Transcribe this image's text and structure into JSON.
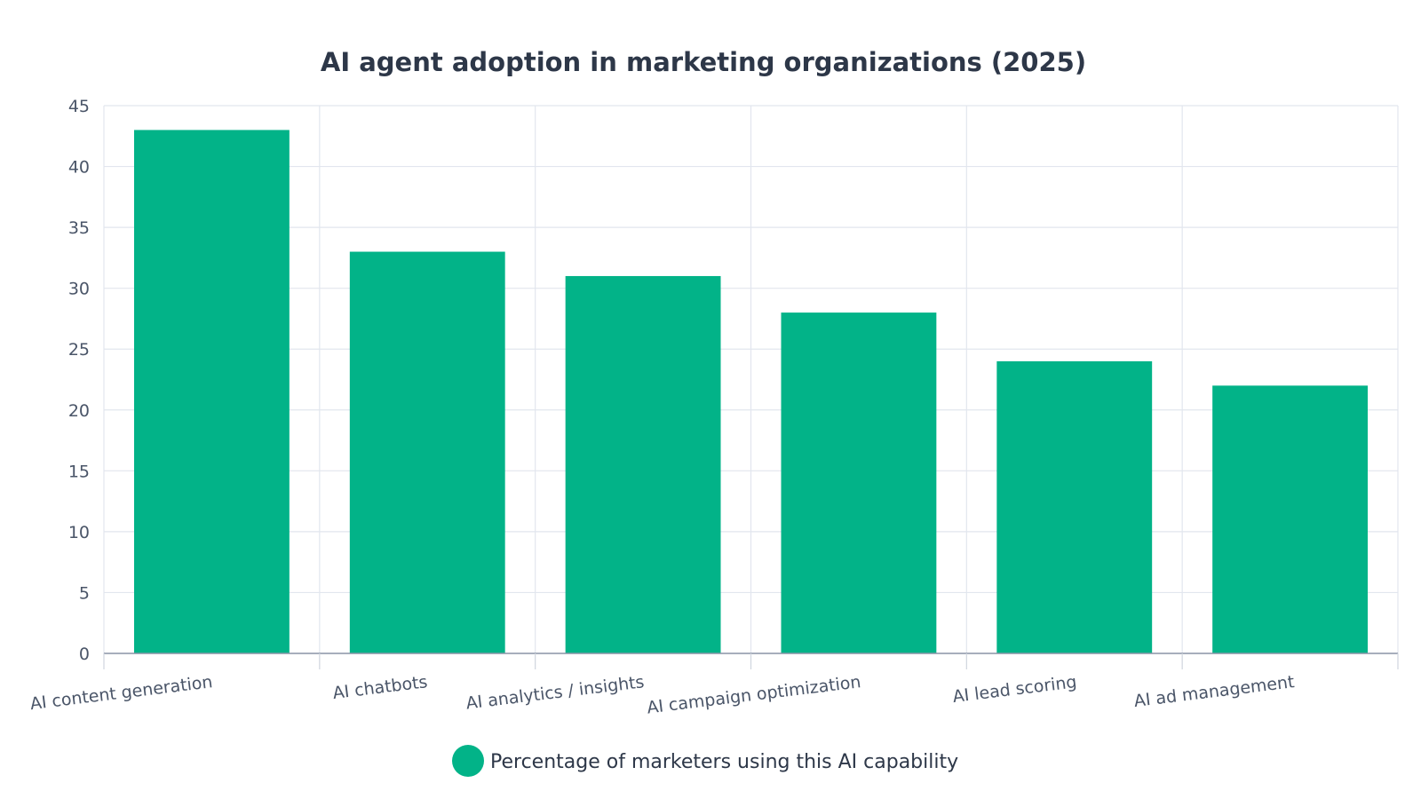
{
  "chart_data": {
    "type": "bar",
    "title": "AI agent adoption in marketing organizations (2025)",
    "xlabel": "",
    "ylabel": "",
    "categories": [
      "AI content generation",
      "AI chatbots",
      "AI analytics / insights",
      "AI campaign optimization",
      "AI lead scoring",
      "AI ad management"
    ],
    "series": [
      {
        "name": "Percentage of marketers using this AI capability",
        "values": [
          43,
          33,
          31,
          28,
          24,
          22
        ],
        "color": "#02b388"
      }
    ],
    "ylim": [
      0,
      45
    ],
    "yticks": [
      0,
      5,
      10,
      15,
      20,
      25,
      30,
      35,
      40,
      45
    ],
    "grid": true,
    "legend_position": "bottom-center"
  }
}
